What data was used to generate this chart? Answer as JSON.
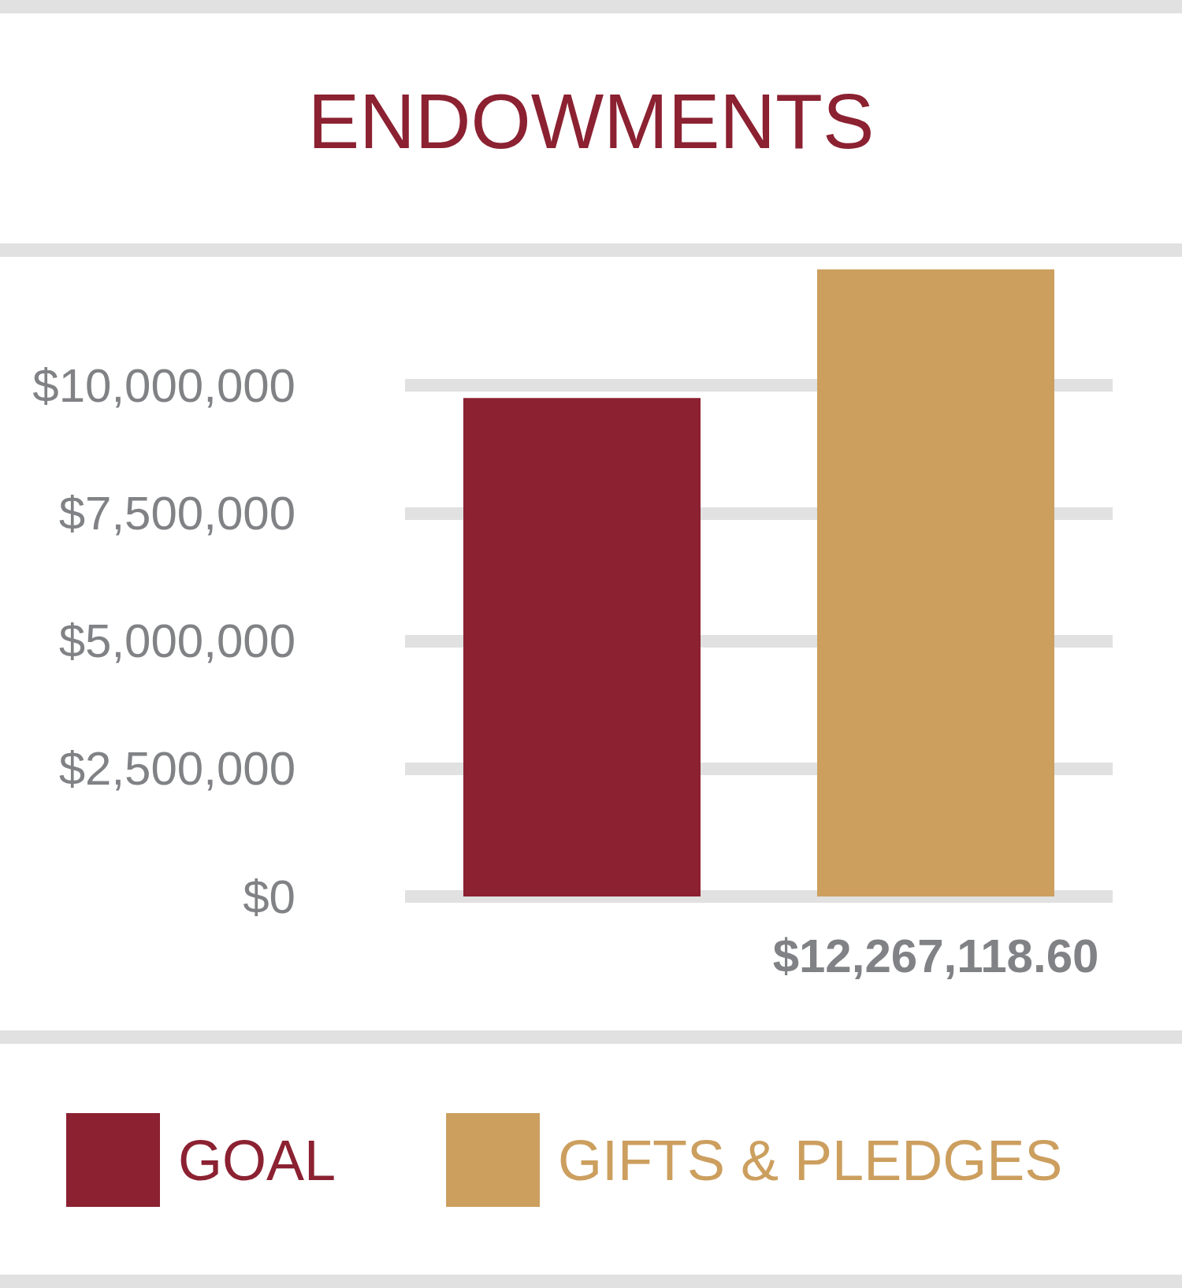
{
  "chart_data": {
    "type": "bar",
    "title": "ENDOWMENTS",
    "categories": [
      null,
      null
    ],
    "series": [
      {
        "name": "GOAL",
        "color": "#8b2131",
        "values": [
          9750000,
          null
        ]
      },
      {
        "name": "GIFTS & PLEDGES",
        "color": "#cc9f5f",
        "values": [
          null,
          12267118.6
        ],
        "value_labels": [
          null,
          "$12,267,118.60"
        ]
      }
    ],
    "yticks": [
      {
        "value": 0,
        "label": "$0"
      },
      {
        "value": 2500000,
        "label": "$2,500,000"
      },
      {
        "value": 5000000,
        "label": "$5,000,000"
      },
      {
        "value": 7500000,
        "label": "$7,500,000"
      },
      {
        "value": 10000000,
        "label": "$10,000,000"
      }
    ],
    "ylim": [
      0,
      12267118.6
    ],
    "grid": "y",
    "legend": "bottom"
  }
}
